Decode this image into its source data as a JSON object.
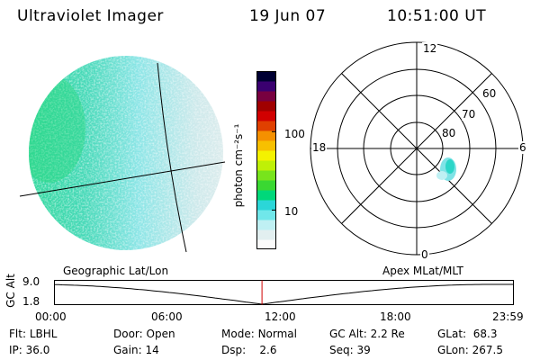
{
  "header": {
    "title": "Ultraviolet Imager",
    "date": "19 Jun 07",
    "time": "10:51:00 UT"
  },
  "colorbar": {
    "unit_label": "photon cm⁻²s⁻¹",
    "tick_labels": [
      "100",
      "10"
    ],
    "colors": [
      "#fbfbfb",
      "#e2eff0",
      "#bff0f3",
      "#70e7ea",
      "#2bd6d8",
      "#00d87a",
      "#3ad832",
      "#78e41c",
      "#bff007",
      "#f4f200",
      "#f7c000",
      "#f59000",
      "#e04000",
      "#d10000",
      "#a00000",
      "#780040",
      "#3a0070",
      "#000033"
    ]
  },
  "polar_plot": {
    "hour_labels": {
      "top": "12",
      "left": "18",
      "right": "6",
      "bottom": "0"
    },
    "lat_labels": [
      "60",
      "70",
      "80"
    ]
  },
  "timeline": {
    "y_axis_label": "GC Alt",
    "y_tick_labels": [
      "9.0",
      "1.8"
    ],
    "left_caption": "Geographic Lat/Lon",
    "right_caption": "Apex MLat/MLT",
    "time_ticks": [
      "00:00",
      "06:00",
      "12:00",
      "18:00",
      "23:59"
    ],
    "current_time_hours": 10.85
  },
  "info": {
    "flt": {
      "label": "Flt:",
      "value": "LBHL"
    },
    "ip": {
      "label": "IP:",
      "value": "36.0"
    },
    "door": {
      "label": "Door:",
      "value": "Open"
    },
    "gain": {
      "label": "Gain:",
      "value": "14"
    },
    "mode": {
      "label": "Mode:",
      "value": "Normal"
    },
    "dsp": {
      "label": "Dsp:",
      "value": "2.6"
    },
    "gcalt": {
      "label": "GC Alt:",
      "value": "2.2 Re"
    },
    "seq": {
      "label": "Seq:",
      "value": "39"
    },
    "glat": {
      "label": "GLat:",
      "value": "68.3"
    },
    "glon": {
      "label": "GLon:",
      "value": "267.5"
    }
  },
  "colors": {
    "earth_green": "#35d5a8",
    "earth_cyan": "#7fe3e6",
    "earth_pale": "#d9ecee",
    "marker_red": "#d00000"
  }
}
